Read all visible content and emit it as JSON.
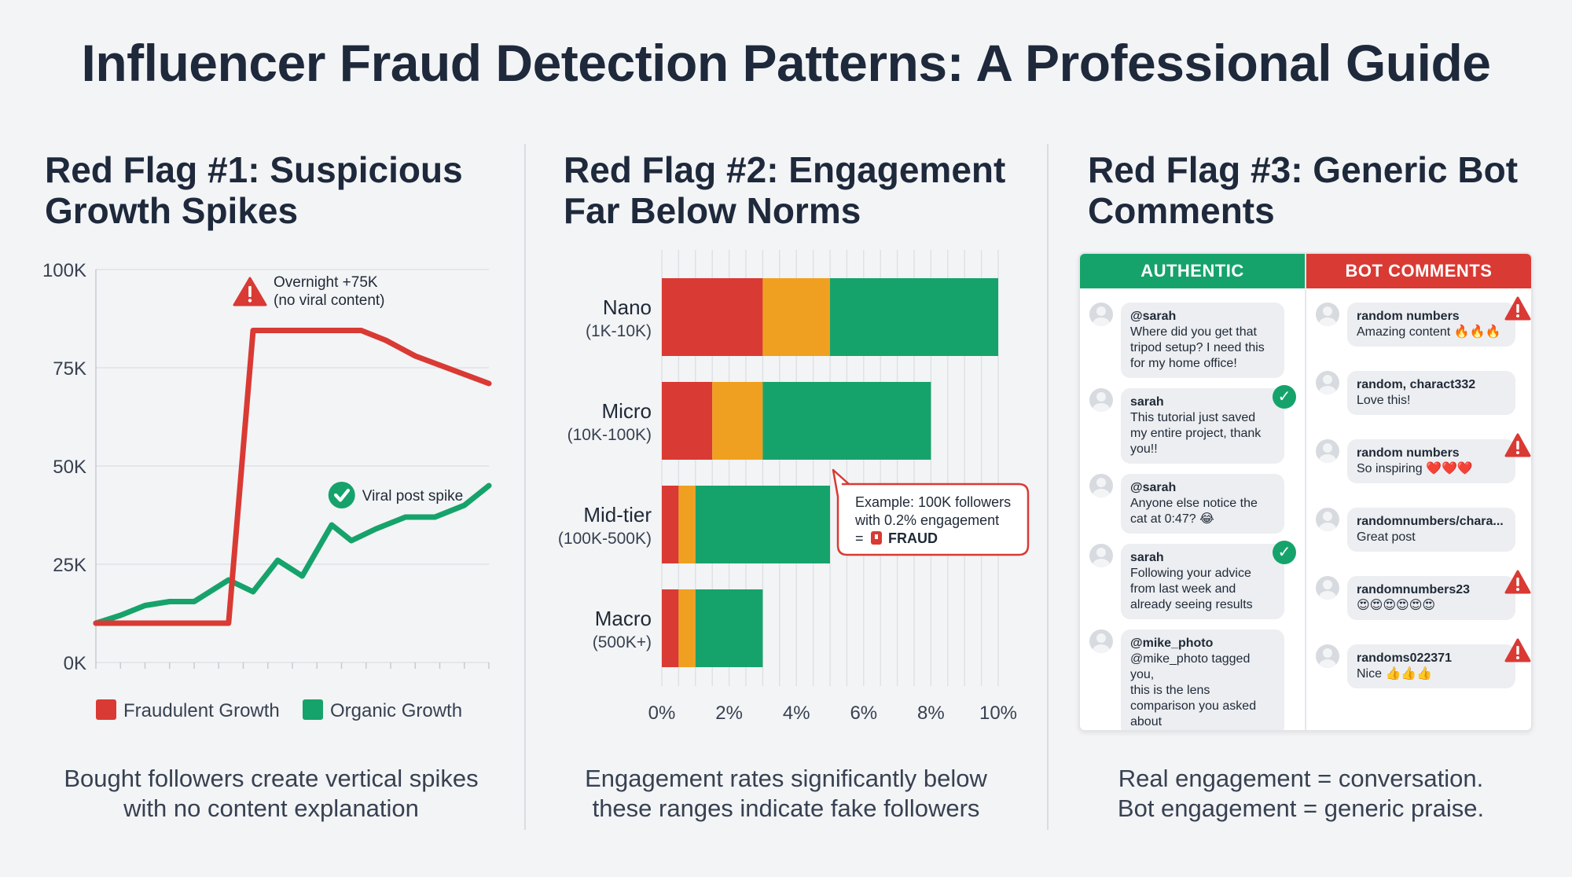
{
  "title": "Influencer Fraud Detection Patterns: A Professional Guide",
  "panels": {
    "growth": {
      "heading_line1": "Red Flag #1: Suspicious",
      "heading_line2": "Growth Spikes",
      "caption_line1": "Bought followers create vertical spikes",
      "caption_line2": "with no content explanation"
    },
    "engagement": {
      "heading_line1": "Red Flag #2: Engagement",
      "heading_line2": "Far Below Norms",
      "caption_line1": "Engagement rates significantly below",
      "caption_line2": "these ranges indicate fake followers"
    },
    "comments": {
      "heading_line1": "Red Flag #3: Generic Bot",
      "heading_line2": "Comments",
      "caption_line1": "Real engagement = conversation.",
      "caption_line2": "Bot engagement = generic praise."
    }
  },
  "chart_data": [
    {
      "type": "line",
      "title": "Red Flag #1: Suspicious Growth Spikes",
      "x": [
        0,
        1,
        2,
        3,
        4,
        5,
        6,
        7,
        8,
        9,
        10,
        11,
        12,
        13,
        14,
        15,
        16
      ],
      "xlim": [
        0,
        16
      ],
      "ylim": [
        0,
        100000
      ],
      "yticks": [
        "0K",
        "25K",
        "50K",
        "75K",
        "100K"
      ],
      "grid": true,
      "legend_placement": "bottom",
      "series": [
        {
          "name": "Fraudulent Growth",
          "color": "#d93a34",
          "points": [
            [
              0,
              10000
            ],
            [
              5.4,
              10000
            ],
            [
              6.4,
              84500
            ],
            [
              10.8,
              84500
            ],
            [
              11.8,
              82000
            ],
            [
              13,
              78000
            ],
            [
              16,
              71000
            ]
          ]
        },
        {
          "name": "Organic Growth",
          "color": "#16a36b",
          "points": [
            [
              0,
              10000
            ],
            [
              1,
              12000
            ],
            [
              2,
              14500
            ],
            [
              3,
              15500
            ],
            [
              4,
              15500
            ],
            [
              5.4,
              21000
            ],
            [
              6.4,
              18000
            ],
            [
              7.4,
              26000
            ],
            [
              8.4,
              22000
            ],
            [
              9.6,
              35000
            ],
            [
              10.4,
              31000
            ],
            [
              11.4,
              34000
            ],
            [
              12.6,
              37000
            ],
            [
              13.8,
              37000
            ],
            [
              15,
              40000
            ],
            [
              16,
              45000
            ]
          ]
        }
      ],
      "annotations": [
        {
          "text_line1": "Overnight +75K",
          "text_line2": "(no viral content)",
          "icon": "warning-icon",
          "x": 6.4,
          "y": 92000
        },
        {
          "text": "Viral post spike",
          "icon": "check-icon",
          "x": 10.2,
          "y": 44000
        }
      ]
    },
    {
      "type": "bar",
      "orientation": "horizontal",
      "stacked": true,
      "title": "Red Flag #2: Engagement Far Below Norms",
      "xlim": [
        0,
        10
      ],
      "xticks": [
        "0%",
        "2%",
        "4%",
        "6%",
        "8%",
        "10%"
      ],
      "categories": [
        {
          "name": "Nano",
          "range": "(1K-10K)"
        },
        {
          "name": "Micro",
          "range": "(10K-100K)"
        },
        {
          "name": "Mid-tier",
          "range": "(100K-500K)"
        },
        {
          "name": "Macro",
          "range": "(500K+)"
        }
      ],
      "series": [
        {
          "color": "#d93a34",
          "values": [
            3.0,
            1.5,
            0.5,
            0.5
          ]
        },
        {
          "color": "#f0a020",
          "values": [
            2.0,
            1.5,
            0.5,
            0.5
          ]
        },
        {
          "color": "#16a36b",
          "values": [
            5.0,
            5.0,
            4.0,
            2.0
          ]
        }
      ],
      "callout": {
        "line1": "Example: 100K followers",
        "line2": "with 0.2% engagement",
        "line3_prefix": "= ",
        "line3_label": "FRAUD",
        "icon": "alarm-icon"
      }
    }
  ],
  "comments": {
    "authentic_header": "AUTHENTIC",
    "bot_header": "BOT COMMENTS",
    "authentic": [
      {
        "user": "@sarah",
        "lines": [
          "Where did you get that",
          "tripod setup? I need this",
          "for my home office!"
        ],
        "verified": false
      },
      {
        "user": "sarah",
        "lines": [
          "This tutorial just saved",
          "my entire project, thank",
          "you!!"
        ],
        "verified": true
      },
      {
        "user": "@sarah",
        "lines": [
          "Anyone else notice the",
          "cat at 0:47? 😂"
        ],
        "verified": false
      },
      {
        "user": "sarah",
        "lines": [
          "Following your advice",
          "from last week and",
          "already seeing results"
        ],
        "verified": true
      },
      {
        "user": "@mike_photo",
        "lines": [
          "@mike_photo tagged you,",
          "this is the lens",
          "comparison you asked",
          "about"
        ],
        "verified": false
      }
    ],
    "bots": [
      {
        "user": "random numbers",
        "text": "Amazing content 🔥🔥🔥",
        "flagged": true
      },
      {
        "user": "random, charact332",
        "text": "Love this!",
        "flagged": false
      },
      {
        "user": "random numbers",
        "text": "So inspiring ❤️❤️❤️",
        "flagged": true
      },
      {
        "user": "randomnumbers/chara...",
        "text": "Great post",
        "flagged": false
      },
      {
        "user": "randomnumbers23",
        "text": "😍😍😍😍😍😍",
        "flagged": true
      },
      {
        "user": "randoms022371",
        "text": "Nice 👍👍👍",
        "flagged": true
      }
    ]
  }
}
